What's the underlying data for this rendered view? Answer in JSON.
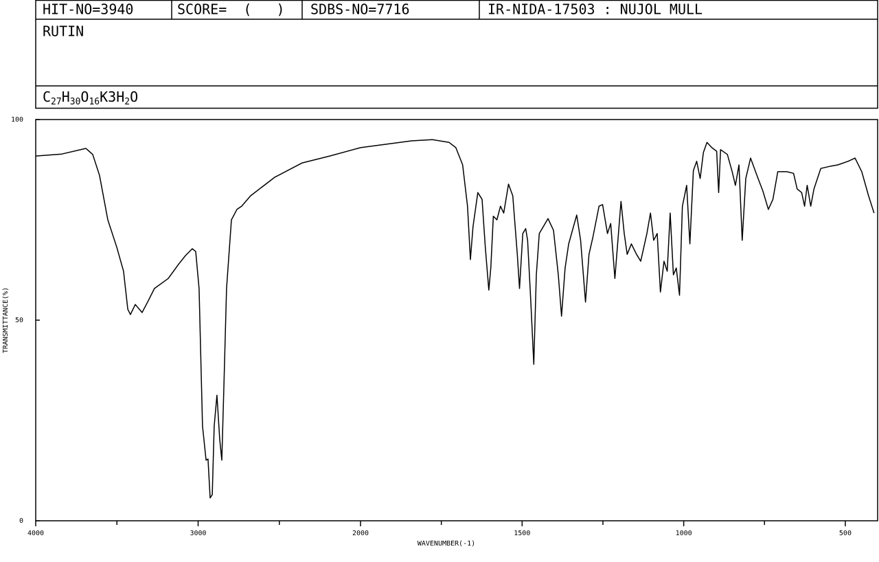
{
  "header": {
    "hit_no": "HIT-NO=3940",
    "score": "SCORE=  (   )",
    "sdbs_no": "SDBS-NO=7716",
    "ir_id": "IR-NIDA-17503 : NUJOL MULL",
    "name": "RUTIN",
    "formula": {
      "parts": [
        "C",
        "27",
        "H",
        "30",
        "O",
        "16",
        "K3H",
        "2",
        "O"
      ]
    }
  },
  "chart_data": {
    "type": "line",
    "xlabel": "WAVENUMBER(-1)",
    "ylabel": "TRANSMITTANCE(%)",
    "color": "#000000",
    "xlim": [
      4000,
      400
    ],
    "x_scale_change": 2000,
    "ylim": [
      0,
      100
    ],
    "xticks": [
      4000,
      3000,
      2000,
      1500,
      1000,
      500
    ],
    "xminor_ticks": [
      3500,
      2500,
      1750,
      1250,
      750
    ],
    "yticks": [
      0,
      50,
      100
    ],
    "x": [
      4000,
      3839,
      3691,
      3649,
      3607,
      3556,
      3501,
      3459,
      3433,
      3417,
      3387,
      3345,
      3311,
      3269,
      3184,
      3121,
      3078,
      3036,
      3015,
      2994,
      2973,
      2951,
      2939,
      2926,
      2913,
      2901,
      2884,
      2867,
      2854,
      2841,
      2825,
      2795,
      2761,
      2732,
      2677,
      2529,
      2359,
      2190,
      2000,
      1926,
      1842,
      1778,
      1726,
      1705,
      1684,
      1669,
      1660,
      1652,
      1637,
      1624,
      1614,
      1603,
      1597,
      1589,
      1578,
      1567,
      1557,
      1542,
      1529,
      1515,
      1508,
      1498,
      1489,
      1483,
      1473,
      1464,
      1456,
      1447,
      1420,
      1403,
      1388,
      1378,
      1367,
      1356,
      1331,
      1319,
      1304,
      1293,
      1281,
      1262,
      1251,
      1236,
      1226,
      1213,
      1194,
      1184,
      1175,
      1162,
      1146,
      1133,
      1114,
      1103,
      1093,
      1082,
      1072,
      1061,
      1051,
      1042,
      1032,
      1023,
      1013,
      1004,
      991,
      981,
      970,
      960,
      949,
      939,
      928,
      913,
      898,
      892,
      886,
      865,
      850,
      840,
      829,
      819,
      808,
      793,
      770,
      755,
      738,
      724,
      709,
      681,
      660,
      649,
      635,
      626,
      618,
      607,
      597,
      576,
      544,
      523,
      491,
      470,
      449,
      428,
      411
    ],
    "values": [
      90.9,
      91.4,
      92.8,
      91.3,
      86.1,
      75.0,
      68.2,
      62.2,
      52.7,
      51.4,
      53.9,
      51.9,
      54.5,
      57.9,
      60.4,
      63.9,
      66.1,
      67.8,
      67.1,
      57.9,
      23.6,
      15.1,
      15.4,
      5.7,
      6.5,
      23.6,
      31.3,
      20.2,
      15.1,
      33.9,
      57.9,
      75.0,
      77.6,
      78.4,
      81.0,
      85.6,
      89.2,
      90.9,
      93.0,
      93.8,
      94.7,
      95.0,
      94.3,
      93.0,
      88.7,
      78.4,
      65.1,
      73.3,
      81.8,
      80.1,
      68.2,
      57.5,
      63.0,
      75.9,
      75.0,
      78.4,
      76.7,
      83.9,
      81.0,
      66.4,
      57.9,
      71.6,
      72.8,
      69.9,
      54.5,
      39.0,
      61.3,
      71.6,
      75.3,
      72.4,
      61.3,
      51.0,
      63.0,
      69.0,
      76.2,
      69.9,
      54.5,
      66.4,
      70.7,
      78.4,
      78.8,
      71.6,
      74.1,
      60.4,
      79.6,
      71.6,
      66.4,
      69.0,
      66.4,
      64.7,
      71.6,
      76.7,
      69.9,
      71.6,
      57.0,
      64.7,
      62.2,
      76.7,
      61.3,
      63.0,
      56.2,
      78.4,
      83.6,
      69.0,
      87.3,
      89.6,
      85.3,
      91.8,
      94.3,
      93.0,
      92.1,
      81.8,
      92.5,
      91.3,
      87.0,
      83.6,
      88.7,
      69.9,
      85.3,
      90.4,
      85.3,
      82.2,
      77.6,
      80.1,
      87.0,
      87.0,
      86.6,
      82.7,
      81.8,
      78.4,
      83.6,
      78.4,
      82.7,
      87.8,
      88.4,
      88.7,
      89.6,
      90.4,
      87.0,
      81.0,
      76.7
    ]
  }
}
